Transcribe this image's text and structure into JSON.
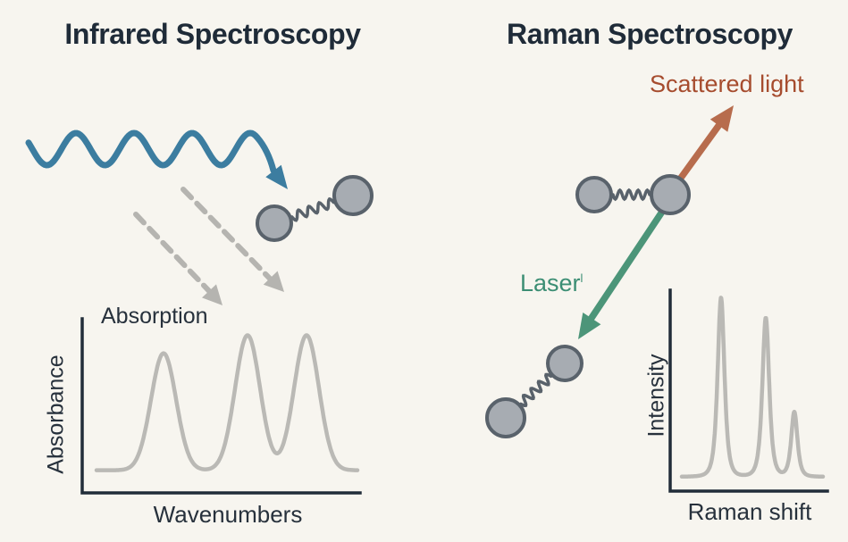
{
  "left_panel": {
    "title": "Infrared Spectroscopy"
  },
  "right_panel": {
    "title": "Raman Spectroscopy",
    "scattered_light_label": "Scattered light",
    "laser_label": "Laser",
    "laser_superscript": "l"
  },
  "colors": {
    "background": "#f7f5ef",
    "title_text": "#1f2b38",
    "axis_text": "#27313c",
    "ir_wave_blue": "#3c7da0",
    "dashed_arrow_gray": "#b5b4b0",
    "molecule_fill": "#a7acb2",
    "molecule_outline": "#59626b",
    "scattered_arrow_orange": "#b76c4d",
    "scattered_text_orange": "#a64c2e",
    "laser_arrow_green": "#4c9579",
    "laser_text_green": "#3c8e74",
    "axis_line": "#212d39",
    "curve_gray": "#bab9b5"
  },
  "chart_data": [
    {
      "id": "ir_spectrum",
      "type": "line",
      "title": "Absorption",
      "xlabel": "Wavenumbers",
      "ylabel": "Absorbance",
      "x_range": [
        0,
        1
      ],
      "ylim": [
        0,
        1
      ],
      "grid": false,
      "legend": false,
      "peak_shape": "gaussian",
      "baseline": 0.02,
      "peaks": [
        {
          "center": 0.257,
          "height": 0.78,
          "width": 0.048
        },
        {
          "center": 0.579,
          "height": 0.9,
          "width": 0.048
        },
        {
          "center": 0.805,
          "height": 0.9,
          "width": 0.048
        }
      ]
    },
    {
      "id": "raman_spectrum",
      "type": "line",
      "title": "",
      "xlabel": "Raman shift",
      "ylabel": "Intensity",
      "x_range": [
        0,
        1
      ],
      "ylim": [
        0,
        1
      ],
      "grid": false,
      "legend": false,
      "peak_shape": "lorentzian",
      "baseline": 0.015,
      "peaks": [
        {
          "center": 0.278,
          "height": 0.97,
          "width": 0.044
        },
        {
          "center": 0.595,
          "height": 0.86,
          "width": 0.044
        },
        {
          "center": 0.797,
          "height": 0.35,
          "width": 0.04
        }
      ]
    }
  ]
}
